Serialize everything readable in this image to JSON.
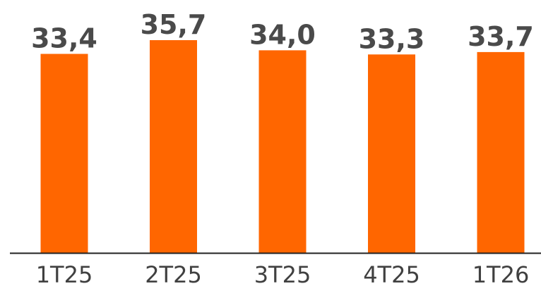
{
  "chart_data": {
    "type": "bar",
    "categories": [
      "1T25",
      "2T25",
      "3T25",
      "4T25",
      "1T26"
    ],
    "values": [
      33.4,
      35.7,
      34.0,
      33.3,
      33.7
    ],
    "data_labels": [
      "33,4",
      "35,7",
      "34,0",
      "33,3",
      "33,7"
    ],
    "title": "",
    "xlabel": "",
    "ylabel": "",
    "ylim": [
      0,
      35.7
    ],
    "grid": false,
    "legend": "none",
    "colors": {
      "bar": "#FF6600",
      "value_label": "#4a4a4a",
      "tick_label": "#404040",
      "axis": "#222222"
    }
  }
}
